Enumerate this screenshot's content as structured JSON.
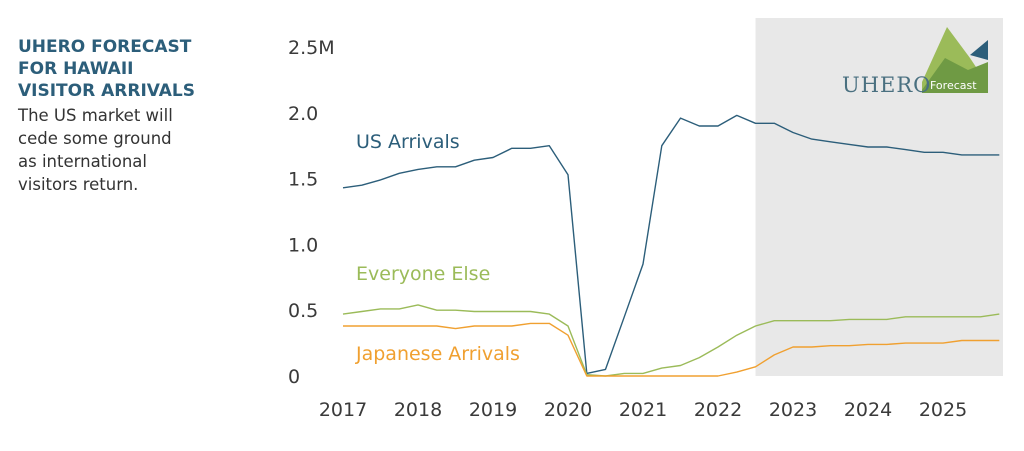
{
  "sidebar": {
    "title": "UHERO FORECAST\nFOR HAWAII\nVISITOR ARRIVALS",
    "subtitle": "The US market will\ncede some ground\nas international\nvisitors return."
  },
  "logo": {
    "name": "UHERO",
    "tag": "Forecast"
  },
  "colors": {
    "us": "#2c5e7a",
    "everyone": "#9bbb59",
    "japan": "#f0a030",
    "forecast_band": "#e8e8e8"
  },
  "chart_data": {
    "type": "line",
    "y_tick_labels": [
      "2.5M",
      "2.0",
      "1.5",
      "1.0",
      "0.5",
      "0"
    ],
    "y_tick_values": [
      2.5,
      2.0,
      1.5,
      1.0,
      0.5,
      0
    ],
    "x_tick_labels": [
      "2017",
      "2018",
      "2019",
      "2020",
      "2021",
      "2022",
      "2023",
      "2024",
      "2025"
    ],
    "x_tick_values": [
      2017,
      2018,
      2019,
      2020,
      2021,
      2022,
      2023,
      2024,
      2025
    ],
    "ylim": [
      0,
      2.5
    ],
    "xlim": [
      2017,
      2025.8
    ],
    "forecast_start": 2022.5,
    "grid": false,
    "series": [
      {
        "name": "US Arrivals",
        "color_key": "us",
        "x": [
          2017,
          2017.25,
          2017.5,
          2017.75,
          2018,
          2018.25,
          2018.5,
          2018.75,
          2019,
          2019.25,
          2019.5,
          2019.75,
          2020,
          2020.25,
          2020.5,
          2020.75,
          2021,
          2021.25,
          2021.5,
          2021.75,
          2022,
          2022.25,
          2022.5,
          2022.75,
          2023,
          2023.25,
          2023.5,
          2023.75,
          2024,
          2024.25,
          2024.5,
          2024.75,
          2025,
          2025.25,
          2025.5,
          2025.75
        ],
        "values": [
          1.43,
          1.45,
          1.49,
          1.54,
          1.57,
          1.59,
          1.59,
          1.64,
          1.66,
          1.73,
          1.73,
          1.75,
          1.53,
          0.02,
          0.05,
          0.45,
          0.85,
          1.75,
          1.96,
          1.9,
          1.9,
          1.98,
          1.92,
          1.92,
          1.85,
          1.8,
          1.78,
          1.76,
          1.74,
          1.74,
          1.72,
          1.7,
          1.7,
          1.68,
          1.68,
          1.68
        ]
      },
      {
        "name": "Everyone Else",
        "color_key": "everyone",
        "x": [
          2017,
          2017.25,
          2017.5,
          2017.75,
          2018,
          2018.25,
          2018.5,
          2018.75,
          2019,
          2019.25,
          2019.5,
          2019.75,
          2020,
          2020.25,
          2020.5,
          2020.75,
          2021,
          2021.25,
          2021.5,
          2021.75,
          2022,
          2022.25,
          2022.5,
          2022.75,
          2023,
          2023.25,
          2023.5,
          2023.75,
          2024,
          2024.25,
          2024.5,
          2024.75,
          2025,
          2025.25,
          2025.5,
          2025.75
        ],
        "values": [
          0.47,
          0.49,
          0.51,
          0.51,
          0.54,
          0.5,
          0.5,
          0.49,
          0.49,
          0.49,
          0.49,
          0.47,
          0.38,
          0.01,
          0.0,
          0.02,
          0.02,
          0.06,
          0.08,
          0.14,
          0.22,
          0.31,
          0.38,
          0.42,
          0.42,
          0.42,
          0.42,
          0.43,
          0.43,
          0.43,
          0.45,
          0.45,
          0.45,
          0.45,
          0.45,
          0.47
        ]
      },
      {
        "name": "Japanese Arrivals",
        "color_key": "japan",
        "x": [
          2017,
          2017.25,
          2017.5,
          2017.75,
          2018,
          2018.25,
          2018.5,
          2018.75,
          2019,
          2019.25,
          2019.5,
          2019.75,
          2020,
          2020.25,
          2020.5,
          2020.75,
          2021,
          2021.25,
          2021.5,
          2021.75,
          2022,
          2022.25,
          2022.5,
          2022.75,
          2023,
          2023.25,
          2023.5,
          2023.75,
          2024,
          2024.25,
          2024.5,
          2024.75,
          2025,
          2025.25,
          2025.5,
          2025.75
        ],
        "values": [
          0.38,
          0.38,
          0.38,
          0.38,
          0.38,
          0.38,
          0.36,
          0.38,
          0.38,
          0.38,
          0.4,
          0.4,
          0.31,
          0.0,
          0.0,
          0.0,
          0.0,
          0.0,
          0.0,
          0.0,
          0.0,
          0.03,
          0.07,
          0.16,
          0.22,
          0.22,
          0.23,
          0.23,
          0.24,
          0.24,
          0.25,
          0.25,
          0.25,
          0.27,
          0.27,
          0.27
        ]
      }
    ]
  }
}
